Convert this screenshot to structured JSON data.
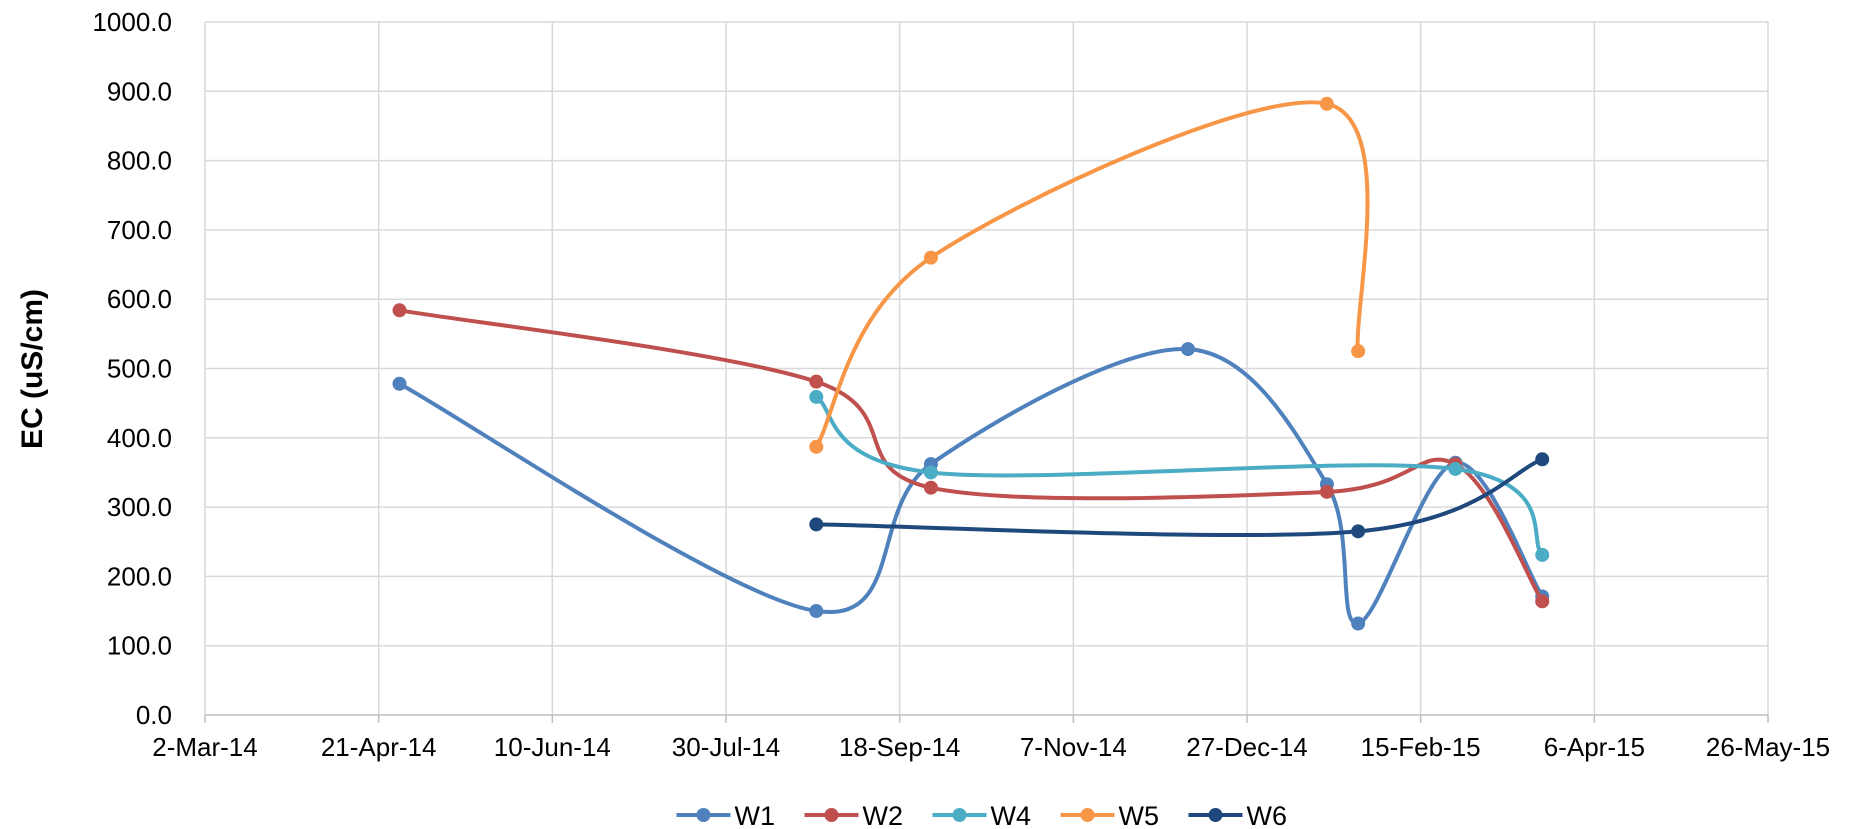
{
  "chart_data": {
    "type": "line",
    "title": "",
    "xlabel": "",
    "ylabel": "EC  (uS/cm)",
    "xlim": [
      "2014-03-02",
      "2015-05-26"
    ],
    "ylim": [
      0,
      1000
    ],
    "x_tick_labels": [
      "2-Mar-14",
      "21-Apr-14",
      "10-Jun-14",
      "30-Jul-14",
      "18-Sep-14",
      "7-Nov-14",
      "27-Dec-14",
      "15-Feb-15",
      "6-Apr-15",
      "26-May-15"
    ],
    "x_tick_dates": [
      "2014-03-02",
      "2014-04-21",
      "2014-06-10",
      "2014-07-30",
      "2014-09-18",
      "2014-11-07",
      "2014-12-27",
      "2015-02-15",
      "2015-04-06",
      "2015-05-26"
    ],
    "y_tick_labels": [
      "0.0",
      "100.0",
      "200.0",
      "300.0",
      "400.0",
      "500.0",
      "600.0",
      "700.0",
      "800.0",
      "900.0",
      "1000.0"
    ],
    "y_ticks": [
      0,
      100,
      200,
      300,
      400,
      500,
      600,
      700,
      800,
      900,
      1000
    ],
    "grid": true,
    "smooth": true,
    "legend_position": "bottom",
    "series": [
      {
        "name": "W1",
        "color": "#4f81bd",
        "x": [
          "2014-04-27",
          "2014-08-25",
          "2014-09-27",
          "2014-12-10",
          "2015-01-19",
          "2015-01-28",
          "2015-02-25",
          "2015-03-22"
        ],
        "y": [
          478,
          150,
          362,
          528,
          333,
          132,
          364,
          171
        ]
      },
      {
        "name": "W2",
        "color": "#c0504d",
        "x": [
          "2014-04-27",
          "2014-08-25",
          "2014-09-27",
          "2015-01-19",
          "2015-02-25",
          "2015-03-22"
        ],
        "y": [
          584,
          481,
          328,
          322,
          362,
          164
        ]
      },
      {
        "name": "W4",
        "color": "#4bacc6",
        "x": [
          "2014-08-25",
          "2014-09-27",
          "2015-02-25",
          "2015-03-22"
        ],
        "y": [
          459,
          350,
          355,
          231
        ]
      },
      {
        "name": "W5",
        "color": "#f79646",
        "x": [
          "2014-08-25",
          "2014-09-27",
          "2015-01-19",
          "2015-01-28"
        ],
        "y": [
          387,
          660,
          882,
          525
        ]
      },
      {
        "name": "W6",
        "color": "#1f497d",
        "x": [
          "2014-08-25",
          "2015-01-28",
          "2015-03-22"
        ],
        "y": [
          275,
          265,
          369
        ]
      }
    ]
  }
}
